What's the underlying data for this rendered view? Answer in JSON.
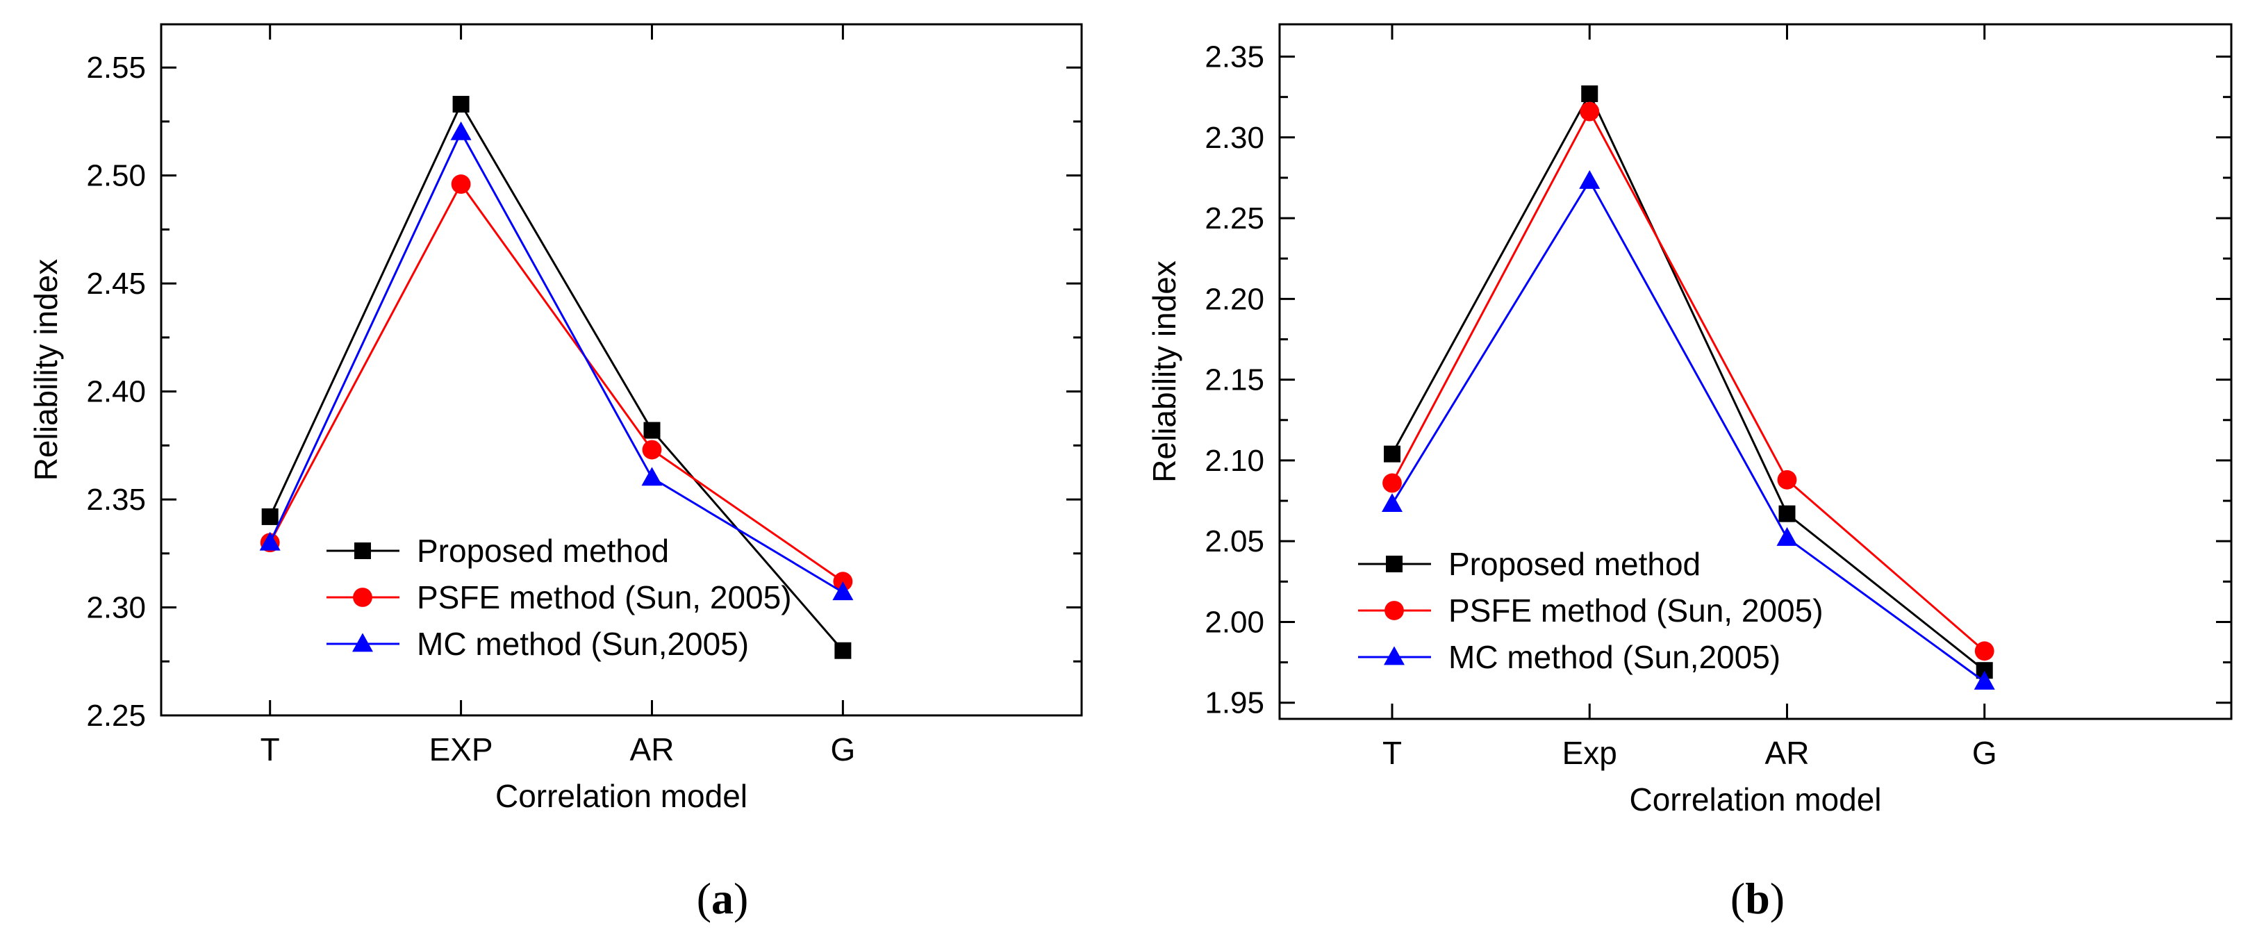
{
  "panels": [
    {
      "label": "(a)",
      "label_parts": [
        "(",
        "a",
        ")"
      ]
    },
    {
      "label": "(b)",
      "label_parts": [
        "(",
        "b",
        ")"
      ]
    }
  ],
  "chart_data": [
    {
      "type": "line",
      "title": "",
      "xlabel": "Correlation model",
      "ylabel": "Reliability index",
      "categories": [
        "T",
        "EXP",
        "AR",
        "G"
      ],
      "ylim": [
        2.25,
        2.57
      ],
      "yticks": [
        2.25,
        2.3,
        2.35,
        2.4,
        2.45,
        2.5,
        2.55
      ],
      "ytick_labels": [
        "2.25",
        "2.30",
        "2.35",
        "2.40",
        "2.45",
        "2.50",
        "2.55"
      ],
      "legend_position": "bottom-left",
      "series": [
        {
          "name": "Proposed method",
          "color": "#000000",
          "marker": "square",
          "values": [
            2.342,
            2.533,
            2.382,
            2.28
          ]
        },
        {
          "name": "PSFE method (Sun, 2005)",
          "color": "#ff0000",
          "marker": "circle",
          "values": [
            2.33,
            2.496,
            2.373,
            2.312
          ]
        },
        {
          "name": "MC method (Sun,2005)",
          "color": "#0000ff",
          "marker": "triangle",
          "values": [
            2.33,
            2.52,
            2.36,
            2.307
          ]
        }
      ]
    },
    {
      "type": "line",
      "title": "",
      "xlabel": "Correlation model",
      "ylabel": "Reliability index",
      "categories": [
        "T",
        "Exp",
        "AR",
        "G"
      ],
      "ylim": [
        1.94,
        2.37
      ],
      "yticks": [
        1.95,
        2.0,
        2.05,
        2.1,
        2.15,
        2.2,
        2.25,
        2.3,
        2.35
      ],
      "ytick_labels": [
        "1.95",
        "2.00",
        "2.05",
        "2.10",
        "2.15",
        "2.20",
        "2.25",
        "2.30",
        "2.35"
      ],
      "legend_position": "bottom-left",
      "series": [
        {
          "name": "Proposed method",
          "color": "#000000",
          "marker": "square",
          "values": [
            2.104,
            2.327,
            2.067,
            1.97
          ]
        },
        {
          "name": "PSFE method (Sun, 2005)",
          "color": "#ff0000",
          "marker": "circle",
          "values": [
            2.086,
            2.316,
            2.088,
            1.982
          ]
        },
        {
          "name": "MC method (Sun,2005)",
          "color": "#0000ff",
          "marker": "triangle",
          "values": [
            2.073,
            2.273,
            2.052,
            1.963
          ]
        }
      ]
    }
  ]
}
